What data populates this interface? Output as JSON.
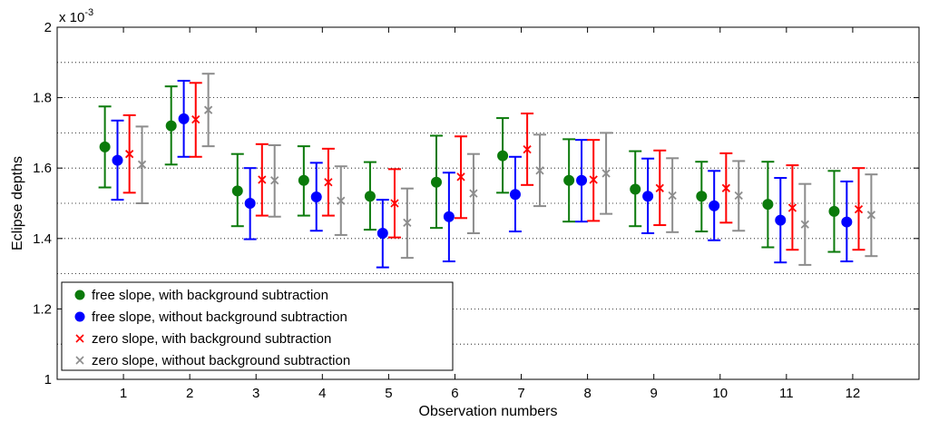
{
  "chart_data": {
    "type": "scatter",
    "xlabel": "Observation numbers",
    "ylabel": "Eclipse depths",
    "y_multiplier": "x 10",
    "y_multiplier_exponent": "-3",
    "categories": [
      "1",
      "2",
      "3",
      "4",
      "5",
      "6",
      "7",
      "8",
      "9",
      "10",
      "11",
      "12"
    ],
    "xlim": [
      0,
      13
    ],
    "ylim": [
      1,
      2
    ],
    "yticks": [
      "1",
      "1.2",
      "1.4",
      "1.6",
      "1.8",
      "2"
    ],
    "grid": "horizontal dotted",
    "legend_position": "bottom-left",
    "series": [
      {
        "name": "free slope, with background subtraction",
        "color": "#0b7a0b",
        "marker": "dot",
        "values": [
          1.66,
          1.72,
          1.535,
          1.565,
          1.52,
          1.56,
          1.635,
          1.565,
          1.54,
          1.52,
          1.497,
          1.477
        ],
        "err_low": [
          1.545,
          1.61,
          1.435,
          1.465,
          1.425,
          1.43,
          1.53,
          1.448,
          1.435,
          1.42,
          1.375,
          1.362
        ],
        "err_high": [
          1.775,
          1.832,
          1.64,
          1.662,
          1.617,
          1.692,
          1.742,
          1.682,
          1.648,
          1.618,
          1.618,
          1.592
        ]
      },
      {
        "name": "free slope, without background subtraction",
        "color": "#0000ff",
        "marker": "dot",
        "values": [
          1.622,
          1.74,
          1.5,
          1.518,
          1.415,
          1.462,
          1.525,
          1.565,
          1.52,
          1.493,
          1.452,
          1.447
        ],
        "err_low": [
          1.51,
          1.632,
          1.398,
          1.422,
          1.318,
          1.335,
          1.42,
          1.448,
          1.415,
          1.395,
          1.332,
          1.335
        ],
        "err_high": [
          1.735,
          1.848,
          1.6,
          1.615,
          1.51,
          1.587,
          1.632,
          1.68,
          1.627,
          1.592,
          1.572,
          1.562
        ]
      },
      {
        "name": "zero slope, with background subtraction",
        "color": "#ff0000",
        "marker": "x",
        "values": [
          1.64,
          1.738,
          1.567,
          1.56,
          1.5,
          1.575,
          1.653,
          1.567,
          1.543,
          1.543,
          1.487,
          1.483
        ],
        "err_low": [
          1.53,
          1.632,
          1.465,
          1.465,
          1.403,
          1.458,
          1.552,
          1.45,
          1.438,
          1.445,
          1.368,
          1.368
        ],
        "err_high": [
          1.75,
          1.842,
          1.668,
          1.655,
          1.597,
          1.69,
          1.755,
          1.68,
          1.65,
          1.642,
          1.608,
          1.6
        ]
      },
      {
        "name": "zero slope, without background subtraction",
        "color": "#8c8c8c",
        "marker": "x",
        "values": [
          1.61,
          1.765,
          1.565,
          1.507,
          1.445,
          1.528,
          1.593,
          1.585,
          1.522,
          1.522,
          1.44,
          1.467
        ],
        "err_low": [
          1.5,
          1.662,
          1.462,
          1.41,
          1.345,
          1.415,
          1.492,
          1.47,
          1.418,
          1.422,
          1.325,
          1.35
        ],
        "err_high": [
          1.718,
          1.868,
          1.665,
          1.605,
          1.542,
          1.64,
          1.695,
          1.7,
          1.628,
          1.62,
          1.555,
          1.582
        ]
      }
    ]
  }
}
